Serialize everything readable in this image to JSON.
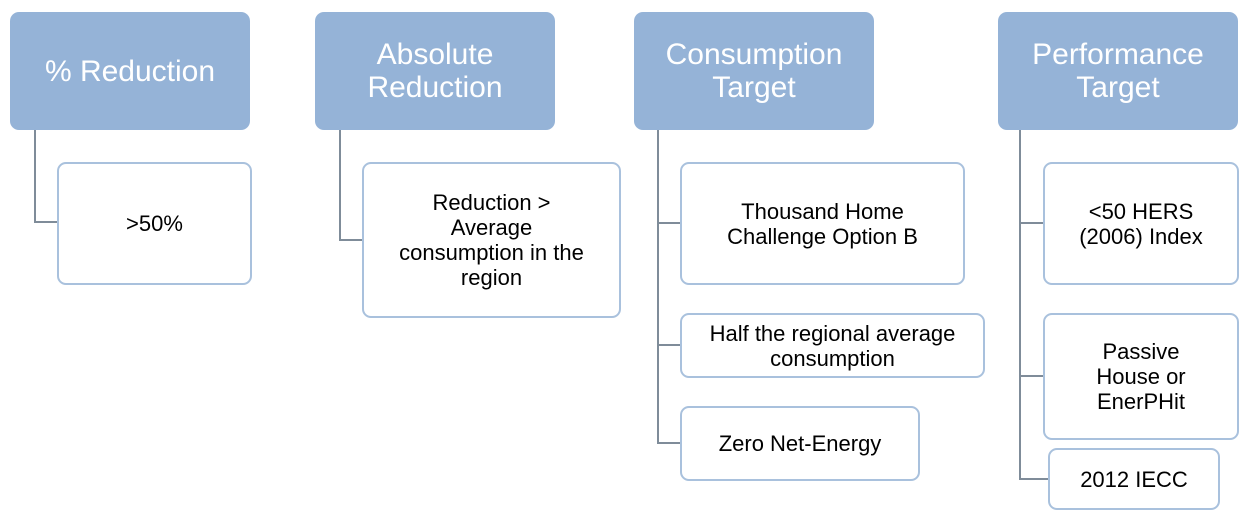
{
  "columns": [
    {
      "header": "% Reduction",
      "items": [
        ">50%"
      ]
    },
    {
      "header": "Absolute Reduction",
      "items": [
        "Reduction > Average consumption in the region"
      ]
    },
    {
      "header": "Consumption Target",
      "items": [
        "Thousand Home Challenge Option B",
        "Half the regional average consumption",
        "Zero Net-Energy"
      ]
    },
    {
      "header": "Performance Target",
      "items": [
        "<50 HERS (2006) Index",
        "Passive House or EnerPHit",
        "2012 IECC"
      ]
    }
  ]
}
